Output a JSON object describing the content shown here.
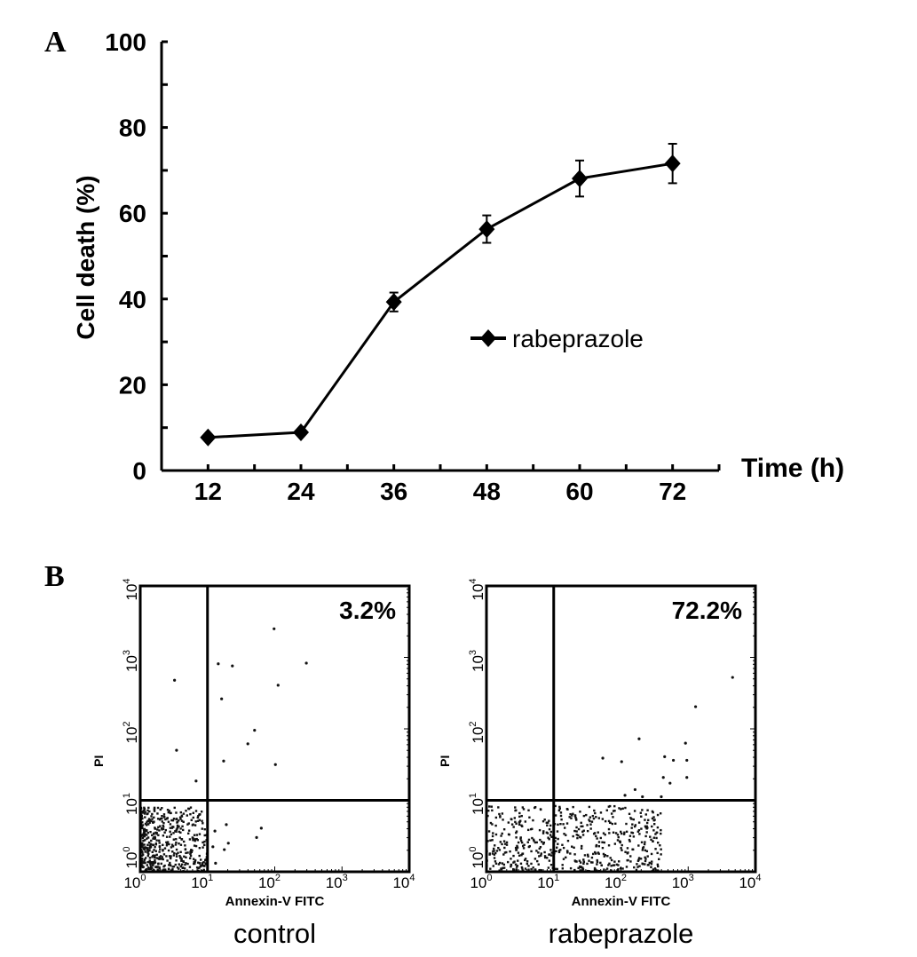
{
  "panel_labels": {
    "a": "A",
    "b": "B"
  },
  "chart_data": [
    {
      "type": "line",
      "title": "",
      "xlabel": "Time (h)",
      "ylabel": "Cell death (%)",
      "xlim": [
        6,
        78
      ],
      "ylim": [
        0,
        100
      ],
      "x_ticks": [
        6,
        12,
        18,
        24,
        30,
        36,
        42,
        48,
        54,
        60,
        66,
        72,
        78
      ],
      "x_tick_labels": [
        "12",
        "24",
        "36",
        "48",
        "60",
        "72"
      ],
      "x_tick_label_values": [
        12,
        24,
        36,
        48,
        60,
        72
      ],
      "y_ticks": [
        0,
        10,
        20,
        30,
        40,
        50,
        60,
        70,
        80,
        90,
        100
      ],
      "y_tick_labels": [
        "0",
        "20",
        "40",
        "60",
        "80",
        "100"
      ],
      "y_tick_label_values": [
        0,
        20,
        40,
        60,
        80,
        100
      ],
      "grid": false,
      "legend_position": "center-right",
      "series": [
        {
          "name": "rabeprazole",
          "marker": "diamond",
          "color": "#000000",
          "x": [
            12,
            24,
            36,
            48,
            60,
            72
          ],
          "y": [
            7.7,
            8.9,
            39.3,
            56.3,
            68.1,
            71.6
          ],
          "error": [
            0,
            0,
            2.2,
            3.2,
            4.2,
            4.6
          ]
        }
      ]
    },
    {
      "type": "scatter",
      "title": "control",
      "xlabel": "Annexin-V FITC",
      "ylabel": "PI",
      "scale": "log",
      "xlim_log10": [
        0,
        4
      ],
      "ylim_log10": [
        0,
        4
      ],
      "tick_labels": [
        "10",
        "10",
        "10",
        "10",
        "10"
      ],
      "tick_exponents": [
        "0",
        "1",
        "2",
        "3",
        "4"
      ],
      "quadrant_gate_log10": {
        "x": 1,
        "y": 1
      },
      "annotation": "3.2%",
      "points_log10": [
        [
          0.51,
          2.68
        ],
        [
          0.54,
          1.7
        ],
        [
          0.83,
          1.27
        ],
        [
          1.16,
          2.91
        ],
        [
          1.37,
          2.88
        ],
        [
          1.21,
          2.42
        ],
        [
          1.24,
          1.55
        ],
        [
          1.6,
          1.79
        ],
        [
          1.7,
          1.98
        ],
        [
          2.01,
          1.5
        ],
        [
          2.05,
          2.61
        ],
        [
          2.47,
          2.92
        ],
        [
          1.99,
          3.4
        ],
        [
          1.28,
          0.66
        ],
        [
          1.8,
          0.61
        ],
        [
          1.73,
          0.48
        ],
        [
          1.11,
          0.57
        ],
        [
          1.25,
          0.31
        ],
        [
          1.31,
          0.4
        ],
        [
          1.08,
          0.35
        ],
        [
          1.12,
          0.12
        ]
      ],
      "cluster": {
        "count": 520,
        "x_log10": [
          0,
          1.0
        ],
        "y_log10": [
          0,
          0.9
        ],
        "skew": 1.6,
        "seed": 7
      }
    },
    {
      "type": "scatter",
      "title": "rabeprazole",
      "xlabel": "Annexin-V FITC",
      "ylabel": "PI",
      "scale": "log",
      "xlim_log10": [
        0,
        4
      ],
      "ylim_log10": [
        0,
        4
      ],
      "tick_labels": [
        "10",
        "10",
        "10",
        "10",
        "10"
      ],
      "tick_exponents": [
        "0",
        "1",
        "2",
        "3",
        "4"
      ],
      "quadrant_gate_log10": {
        "x": 1,
        "y": 1
      },
      "annotation": "72.2%",
      "points_log10": [
        [
          3.66,
          2.72
        ],
        [
          3.11,
          2.31
        ],
        [
          2.27,
          1.86
        ],
        [
          1.73,
          1.59
        ],
        [
          2.01,
          1.54
        ],
        [
          2.65,
          1.61
        ],
        [
          2.78,
          1.56
        ],
        [
          2.98,
          1.56
        ],
        [
          2.63,
          1.32
        ],
        [
          2.73,
          1.24
        ],
        [
          2.98,
          1.32
        ],
        [
          2.21,
          1.15
        ],
        [
          2.06,
          1.07
        ],
        [
          2.32,
          1.05
        ],
        [
          2.6,
          1.05
        ],
        [
          2.96,
          1.8
        ]
      ],
      "cluster": {
        "count": 560,
        "x_log10": [
          0,
          2.6
        ],
        "y_log10": [
          0,
          0.92
        ],
        "skew": 1.1,
        "seed": 13
      }
    }
  ]
}
